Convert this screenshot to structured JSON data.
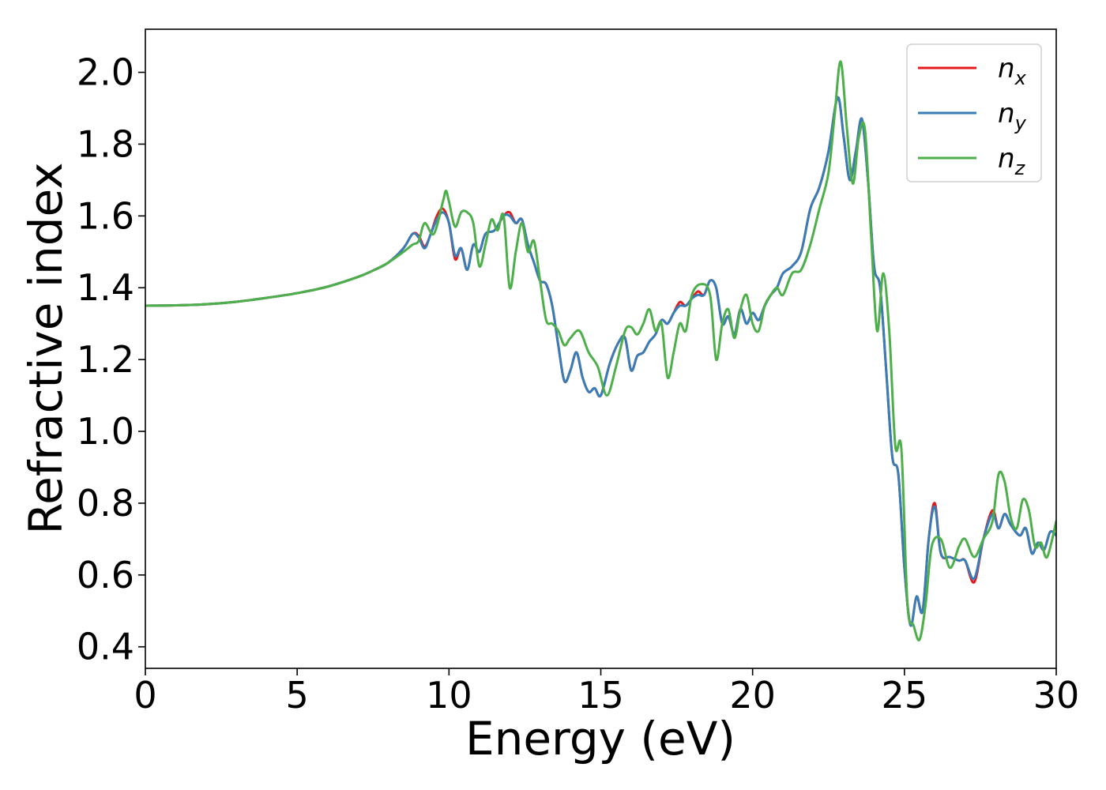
{
  "chart_data": {
    "type": "line",
    "xlabel": "Energy (eV)",
    "ylabel": "Refractive index",
    "xlim": [
      0,
      30
    ],
    "ylim": [
      0.34,
      2.12
    ],
    "xticks": [
      0,
      5,
      10,
      15,
      20,
      25,
      30
    ],
    "xtick_labels": [
      "0",
      "5",
      "10",
      "15",
      "20",
      "25",
      "30"
    ],
    "yticks": [
      0.4,
      0.6,
      0.8,
      1.0,
      1.2,
      1.4,
      1.6,
      1.8,
      2.0
    ],
    "ytick_labels": [
      "0.4",
      "0.6",
      "0.8",
      "1.0",
      "1.2",
      "1.4",
      "1.6",
      "1.8",
      "2.0"
    ],
    "grid": false,
    "legend_position": "top-right",
    "series": [
      {
        "name": "x",
        "color": "#e41a1c",
        "x": [
          0,
          1,
          2,
          3,
          4,
          5,
          6,
          7,
          7.5,
          8,
          8.5,
          8.8,
          9.0,
          9.2,
          9.4,
          9.6,
          9.8,
          10.0,
          10.2,
          10.4,
          10.6,
          10.8,
          11.0,
          11.2,
          11.5,
          11.8,
          12.0,
          12.2,
          12.4,
          12.6,
          12.8,
          13.0,
          13.2,
          13.4,
          13.6,
          13.8,
          14.0,
          14.2,
          14.4,
          14.6,
          14.8,
          15.0,
          15.3,
          15.6,
          15.8,
          16.0,
          16.2,
          16.4,
          16.6,
          16.8,
          17.0,
          17.2,
          17.4,
          17.6,
          17.8,
          18.0,
          18.2,
          18.4,
          18.6,
          18.8,
          19.0,
          19.2,
          19.4,
          19.6,
          19.8,
          20.0,
          20.2,
          20.4,
          20.6,
          20.8,
          21.0,
          21.3,
          21.6,
          21.9,
          22.2,
          22.5,
          22.8,
          23.0,
          23.2,
          23.4,
          23.6,
          23.8,
          24.0,
          24.2,
          24.4,
          24.6,
          24.8,
          25.0,
          25.2,
          25.4,
          25.6,
          25.8,
          26.0,
          26.2,
          26.5,
          26.8,
          27.0,
          27.3,
          27.6,
          27.9,
          28.1,
          28.3,
          28.5,
          28.8,
          29.0,
          29.2,
          29.4,
          29.6,
          29.8,
          30.0
        ],
        "y": [
          1.35,
          1.351,
          1.354,
          1.361,
          1.372,
          1.385,
          1.403,
          1.43,
          1.448,
          1.47,
          1.51,
          1.55,
          1.545,
          1.515,
          1.55,
          1.6,
          1.62,
          1.58,
          1.48,
          1.51,
          1.45,
          1.52,
          1.5,
          1.55,
          1.56,
          1.6,
          1.61,
          1.58,
          1.59,
          1.52,
          1.47,
          1.42,
          1.41,
          1.35,
          1.24,
          1.14,
          1.17,
          1.22,
          1.15,
          1.11,
          1.12,
          1.1,
          1.19,
          1.25,
          1.26,
          1.17,
          1.21,
          1.22,
          1.25,
          1.27,
          1.31,
          1.3,
          1.33,
          1.36,
          1.35,
          1.37,
          1.39,
          1.38,
          1.42,
          1.4,
          1.3,
          1.32,
          1.27,
          1.34,
          1.3,
          1.33,
          1.31,
          1.35,
          1.38,
          1.4,
          1.44,
          1.46,
          1.5,
          1.62,
          1.68,
          1.78,
          1.93,
          1.82,
          1.7,
          1.78,
          1.87,
          1.7,
          1.46,
          1.4,
          1.17,
          0.93,
          0.88,
          0.62,
          0.46,
          0.54,
          0.5,
          0.7,
          0.8,
          0.66,
          0.65,
          0.64,
          0.64,
          0.58,
          0.7,
          0.78,
          0.73,
          0.77,
          0.74,
          0.71,
          0.73,
          0.66,
          0.69,
          0.67,
          0.72,
          0.71
        ]
      },
      {
        "name": "y",
        "color": "#377eb8",
        "x": [
          0,
          1,
          2,
          3,
          4,
          5,
          6,
          7,
          7.5,
          8,
          8.5,
          8.8,
          9.0,
          9.2,
          9.4,
          9.6,
          9.8,
          10.0,
          10.2,
          10.4,
          10.6,
          10.8,
          11.0,
          11.2,
          11.5,
          11.8,
          12.0,
          12.2,
          12.4,
          12.6,
          12.8,
          13.0,
          13.2,
          13.4,
          13.6,
          13.8,
          14.0,
          14.2,
          14.4,
          14.6,
          14.8,
          15.0,
          15.3,
          15.6,
          15.8,
          16.0,
          16.2,
          16.4,
          16.6,
          16.8,
          17.0,
          17.2,
          17.4,
          17.6,
          17.8,
          18.0,
          18.2,
          18.4,
          18.6,
          18.8,
          19.0,
          19.2,
          19.4,
          19.6,
          19.8,
          20.0,
          20.2,
          20.4,
          20.6,
          20.8,
          21.0,
          21.3,
          21.6,
          21.9,
          22.2,
          22.5,
          22.8,
          23.0,
          23.2,
          23.4,
          23.6,
          23.8,
          24.0,
          24.2,
          24.4,
          24.6,
          24.8,
          25.0,
          25.2,
          25.4,
          25.6,
          25.8,
          26.0,
          26.2,
          26.5,
          26.8,
          27.0,
          27.3,
          27.6,
          27.9,
          28.1,
          28.3,
          28.5,
          28.8,
          29.0,
          29.2,
          29.4,
          29.6,
          29.8,
          30.0
        ],
        "y": [
          1.35,
          1.351,
          1.354,
          1.361,
          1.372,
          1.385,
          1.403,
          1.43,
          1.448,
          1.47,
          1.51,
          1.55,
          1.54,
          1.51,
          1.55,
          1.59,
          1.61,
          1.58,
          1.49,
          1.51,
          1.45,
          1.52,
          1.5,
          1.55,
          1.56,
          1.6,
          1.6,
          1.58,
          1.59,
          1.52,
          1.47,
          1.42,
          1.41,
          1.35,
          1.24,
          1.14,
          1.17,
          1.22,
          1.15,
          1.11,
          1.12,
          1.1,
          1.19,
          1.25,
          1.26,
          1.17,
          1.21,
          1.22,
          1.25,
          1.27,
          1.31,
          1.3,
          1.33,
          1.35,
          1.35,
          1.37,
          1.38,
          1.38,
          1.42,
          1.4,
          1.3,
          1.32,
          1.27,
          1.34,
          1.3,
          1.33,
          1.31,
          1.35,
          1.38,
          1.4,
          1.44,
          1.46,
          1.5,
          1.62,
          1.68,
          1.78,
          1.93,
          1.82,
          1.7,
          1.78,
          1.87,
          1.7,
          1.46,
          1.4,
          1.17,
          0.93,
          0.88,
          0.62,
          0.46,
          0.54,
          0.5,
          0.7,
          0.79,
          0.66,
          0.65,
          0.64,
          0.64,
          0.59,
          0.7,
          0.77,
          0.73,
          0.77,
          0.74,
          0.71,
          0.73,
          0.66,
          0.69,
          0.67,
          0.72,
          0.71
        ]
      },
      {
        "name": "z",
        "color": "#4daf4a",
        "x": [
          0,
          1,
          2,
          3,
          4,
          5,
          6,
          7,
          7.5,
          8,
          8.5,
          8.8,
          9.0,
          9.2,
          9.5,
          9.8,
          9.9,
          10.0,
          10.2,
          10.4,
          10.6,
          10.8,
          11.0,
          11.2,
          11.4,
          11.6,
          11.8,
          12.0,
          12.2,
          12.4,
          12.6,
          12.8,
          13.0,
          13.2,
          13.4,
          13.6,
          13.8,
          14.0,
          14.3,
          14.6,
          14.9,
          15.2,
          15.5,
          15.8,
          16.0,
          16.2,
          16.4,
          16.6,
          16.8,
          17.0,
          17.2,
          17.4,
          17.6,
          17.8,
          18.0,
          18.3,
          18.6,
          18.8,
          19.0,
          19.2,
          19.4,
          19.6,
          19.8,
          20.0,
          20.2,
          20.4,
          20.6,
          20.8,
          21.0,
          21.3,
          21.6,
          21.9,
          22.2,
          22.5,
          22.7,
          22.9,
          23.1,
          23.3,
          23.5,
          23.7,
          23.9,
          24.1,
          24.3,
          24.5,
          24.7,
          24.9,
          25.1,
          25.3,
          25.5,
          25.7,
          25.9,
          26.2,
          26.5,
          26.8,
          27.0,
          27.3,
          27.6,
          27.9,
          28.1,
          28.3,
          28.5,
          28.7,
          28.9,
          29.1,
          29.3,
          29.5,
          29.7,
          30.0
        ],
        "y": [
          1.35,
          1.351,
          1.354,
          1.361,
          1.372,
          1.385,
          1.403,
          1.43,
          1.448,
          1.47,
          1.5,
          1.52,
          1.53,
          1.58,
          1.55,
          1.64,
          1.67,
          1.64,
          1.57,
          1.61,
          1.61,
          1.58,
          1.46,
          1.52,
          1.59,
          1.56,
          1.6,
          1.4,
          1.5,
          1.58,
          1.5,
          1.53,
          1.42,
          1.31,
          1.3,
          1.28,
          1.24,
          1.26,
          1.28,
          1.22,
          1.18,
          1.1,
          1.18,
          1.28,
          1.29,
          1.27,
          1.3,
          1.34,
          1.28,
          1.3,
          1.15,
          1.22,
          1.3,
          1.28,
          1.38,
          1.41,
          1.38,
          1.2,
          1.3,
          1.34,
          1.26,
          1.34,
          1.38,
          1.3,
          1.28,
          1.35,
          1.38,
          1.4,
          1.38,
          1.44,
          1.45,
          1.52,
          1.62,
          1.72,
          1.88,
          2.03,
          1.85,
          1.69,
          1.82,
          1.84,
          1.55,
          1.28,
          1.44,
          1.28,
          0.96,
          0.95,
          0.52,
          0.46,
          0.42,
          0.52,
          0.68,
          0.7,
          0.62,
          0.68,
          0.7,
          0.65,
          0.7,
          0.75,
          0.88,
          0.86,
          0.76,
          0.73,
          0.81,
          0.78,
          0.68,
          0.69,
          0.65,
          0.75
        ]
      }
    ]
  }
}
